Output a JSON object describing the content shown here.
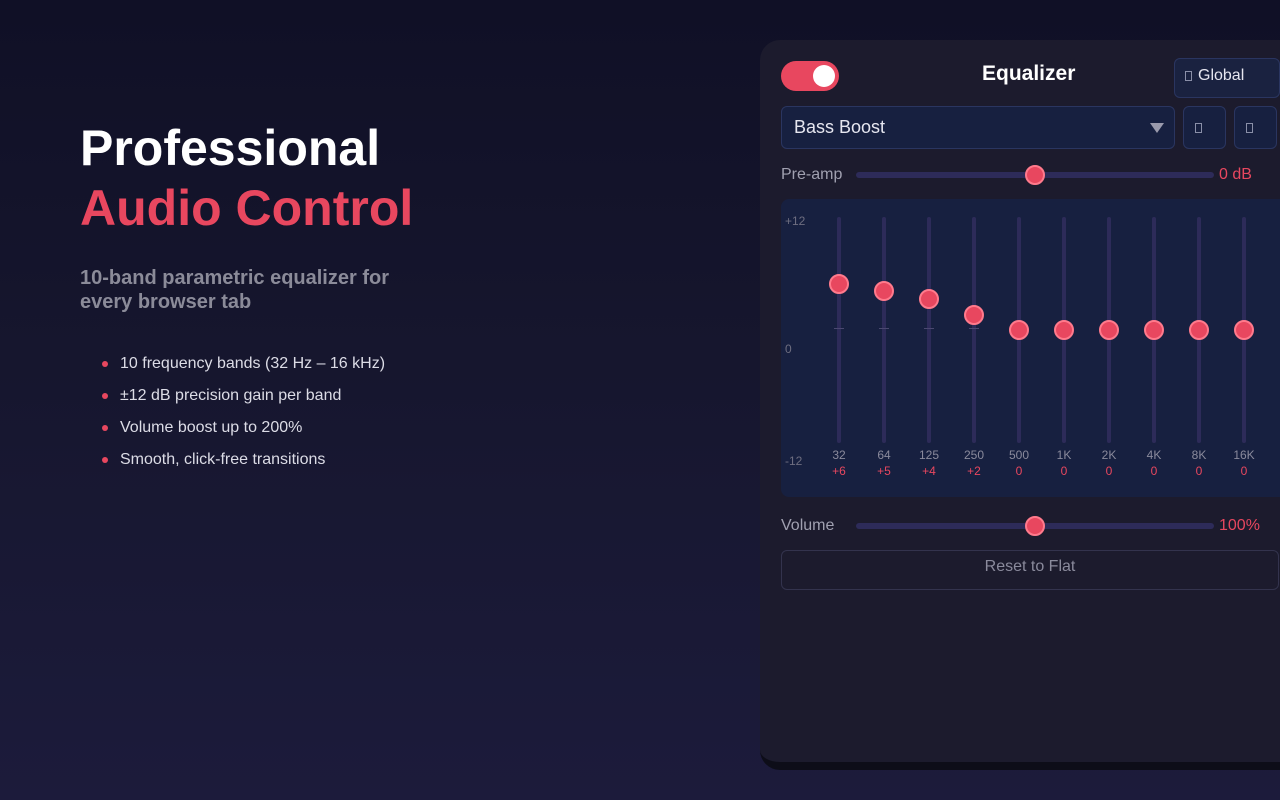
{
  "hero": {
    "title_line1": "Professional",
    "title_line2": "Audio Control",
    "subtitle": "10-band parametric equalizer for every browser tab",
    "features": [
      "10 frequency bands (32 Hz – 16 kHz)",
      "±12 dB precision gain per band",
      "Volume boost up to 200%",
      "Smooth, click-free transitions"
    ]
  },
  "popup": {
    "enabled": true,
    "title": "Equalizer",
    "scope_label": "Global",
    "preset": "Bass Boost",
    "preamp": {
      "label": "Pre-amp",
      "value_text": "0 dB",
      "level": 0.5
    },
    "scale": {
      "max": "+12",
      "mid": "0",
      "min": "-12"
    },
    "bands": [
      {
        "freq": "32",
        "gain": "+6",
        "db": 6
      },
      {
        "freq": "64",
        "gain": "+5",
        "db": 5
      },
      {
        "freq": "125",
        "gain": "+4",
        "db": 4
      },
      {
        "freq": "250",
        "gain": "+2",
        "db": 2
      },
      {
        "freq": "500",
        "gain": "0",
        "db": 0
      },
      {
        "freq": "1K",
        "gain": "0",
        "db": 0
      },
      {
        "freq": "2K",
        "gain": "0",
        "db": 0
      },
      {
        "freq": "4K",
        "gain": "0",
        "db": 0
      },
      {
        "freq": "8K",
        "gain": "0",
        "db": 0
      },
      {
        "freq": "16K",
        "gain": "0",
        "db": 0
      }
    ],
    "volume": {
      "label": "Volume",
      "value_text": "100%",
      "level": 0.5
    },
    "reset_label": "Reset to Flat"
  },
  "colors": {
    "accent": "#e8475f",
    "panel": "#172040",
    "track": "#2d2b59"
  }
}
